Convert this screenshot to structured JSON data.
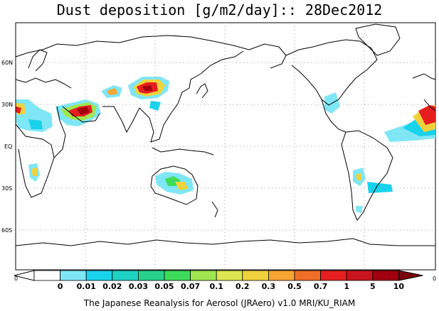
{
  "title": "Dust deposition [g/m2/day]:: 28Dec2012",
  "footer": "The Japanese Reanalysis for Aerosol (JRAero) v1.0 MRI/KU_RIAM",
  "lat_labels": [
    "60N",
    "30N",
    "EQ",
    "30S",
    "60S"
  ],
  "lon_edge_labels": [
    "0",
    "0"
  ],
  "colorbar": {
    "labels": [
      "0",
      "0.01",
      "0.02",
      "0.03",
      "0.05",
      "0.07",
      "0.1",
      "0.2",
      "0.3",
      "0.5",
      "0.7",
      "1",
      "5",
      "10"
    ],
    "colors": [
      "#ffffff",
      "#ffffff",
      "#7fe6f5",
      "#19d2ec",
      "#1ed2c4",
      "#28d28c",
      "#3cdc5a",
      "#a0e650",
      "#dce650",
      "#f0d23c",
      "#f5a532",
      "#f06e28",
      "#e61e1e",
      "#c8141e",
      "#a0000f",
      "#78000a"
    ]
  },
  "colors": {
    "land_outline": "#000000",
    "grid": "#9a9a9a"
  }
}
